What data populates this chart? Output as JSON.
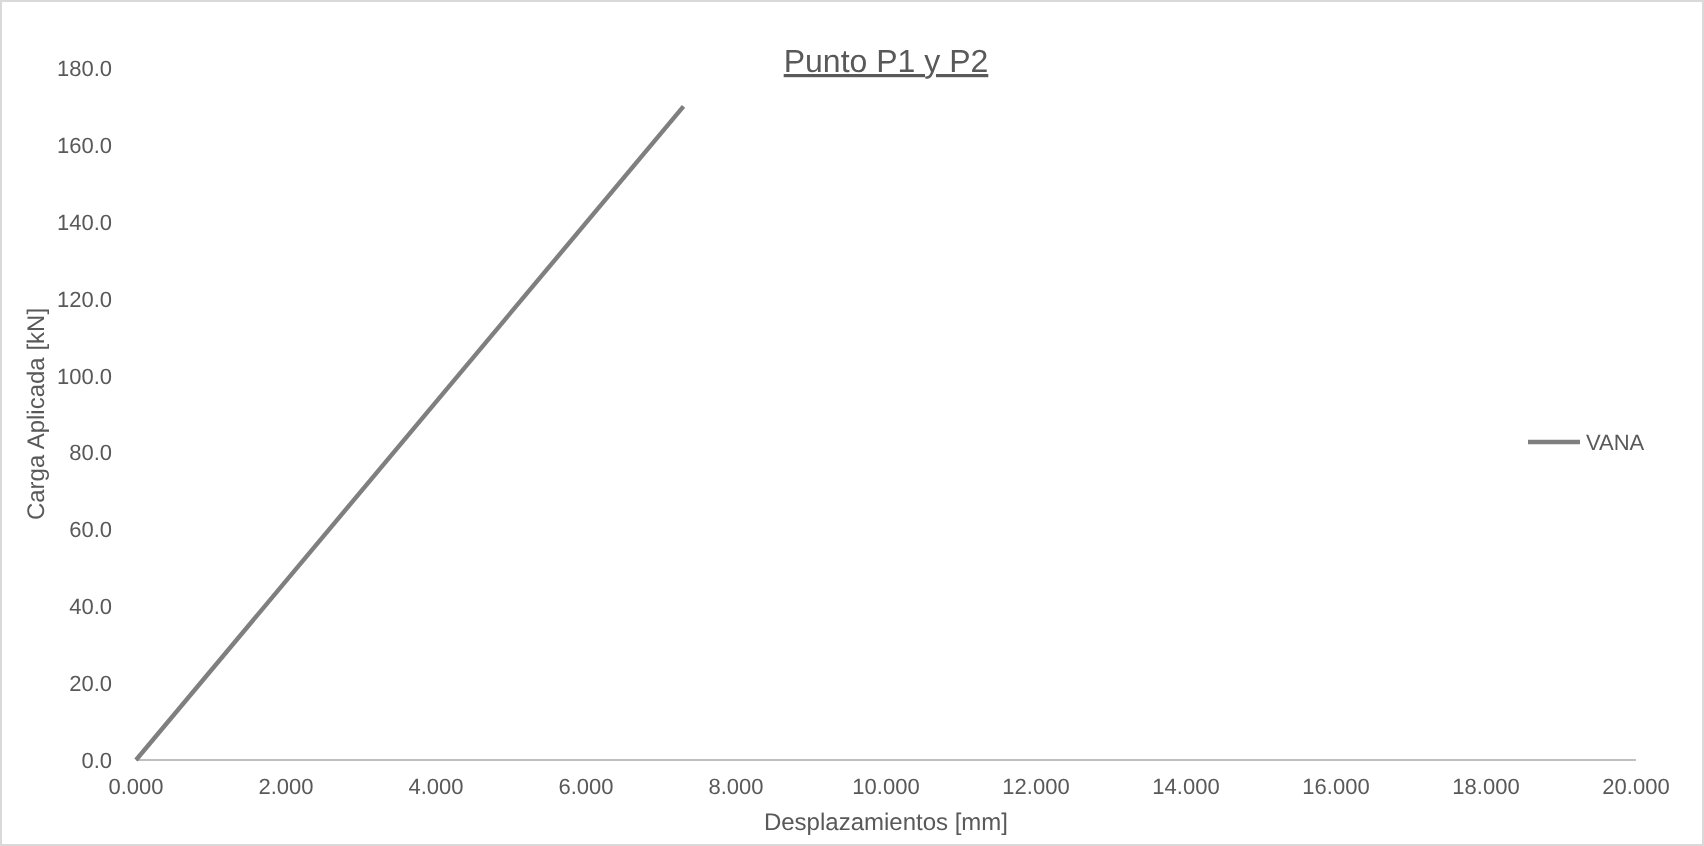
{
  "chart_data": {
    "type": "line",
    "title": "Punto P1 y P2",
    "xlabel": "Desplazamientos [mm]",
    "ylabel": "Carga Aplicada [kN]",
    "x": [
      0,
      7.3
    ],
    "series": [
      {
        "name": "VANA",
        "color": "#7f7f7f",
        "values": [
          0,
          170
        ]
      }
    ],
    "xlim": [
      0,
      20
    ],
    "ylim": [
      0,
      180
    ],
    "xticks": [
      {
        "value": 0,
        "label": "0.000"
      },
      {
        "value": 2,
        "label": "2.000"
      },
      {
        "value": 4,
        "label": "4.000"
      },
      {
        "value": 6,
        "label": "6.000"
      },
      {
        "value": 8,
        "label": "8.000"
      },
      {
        "value": 10,
        "label": "10.000"
      },
      {
        "value": 12,
        "label": "12.000"
      },
      {
        "value": 14,
        "label": "14.000"
      },
      {
        "value": 16,
        "label": "16.000"
      },
      {
        "value": 18,
        "label": "18.000"
      },
      {
        "value": 20,
        "label": "20.000"
      }
    ],
    "yticks": [
      {
        "value": 0,
        "label": "0.0"
      },
      {
        "value": 20,
        "label": "20.0"
      },
      {
        "value": 40,
        "label": "40.0"
      },
      {
        "value": 60,
        "label": "60.0"
      },
      {
        "value": 80,
        "label": "80.0"
      },
      {
        "value": 100,
        "label": "100.0"
      },
      {
        "value": 120,
        "label": "120.0"
      },
      {
        "value": 140,
        "label": "140.0"
      },
      {
        "value": 160,
        "label": "160.0"
      },
      {
        "value": 180,
        "label": "180.0"
      }
    ],
    "legend": "right",
    "grid": false
  }
}
